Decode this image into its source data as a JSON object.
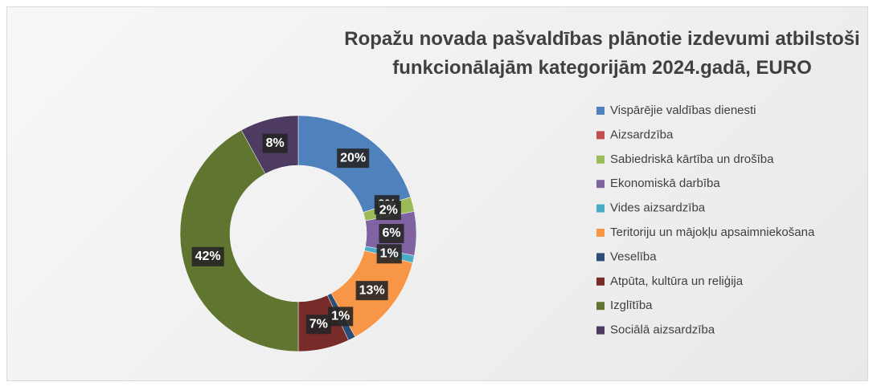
{
  "chart_data": {
    "type": "donut",
    "title": "Ropažu novada pašvaldības plānotie izdevumi atbilstoši funkcionālajām kategorijām 2024.gadā, EURO",
    "categories": [
      "Vispārējie valdības dienesti",
      "Aizsardzība",
      "Sabiedriskā kārtība un drošība",
      "Ekonomiskā darbība",
      "Vides aizsardzība",
      "Teritoriju un mājokļu apsaimniekošana",
      "Veselība",
      "Atpūta, kultūra un reliģija",
      "Izglītība",
      "Sociālā aizsardzība"
    ],
    "values": [
      20,
      0,
      2,
      6,
      1,
      13,
      1,
      7,
      42,
      8
    ],
    "value_labels": [
      "20%",
      "0%",
      "2%",
      "6%",
      "1%",
      "13%",
      "1%",
      "7%",
      "42%",
      "8%"
    ],
    "colors": [
      "#4f81bd",
      "#c0504d",
      "#9bbb59",
      "#8064a2",
      "#4bacc6",
      "#f79646",
      "#2c4d75",
      "#772c2a",
      "#5f7530",
      "#4d3b62"
    ],
    "legend": "right"
  }
}
